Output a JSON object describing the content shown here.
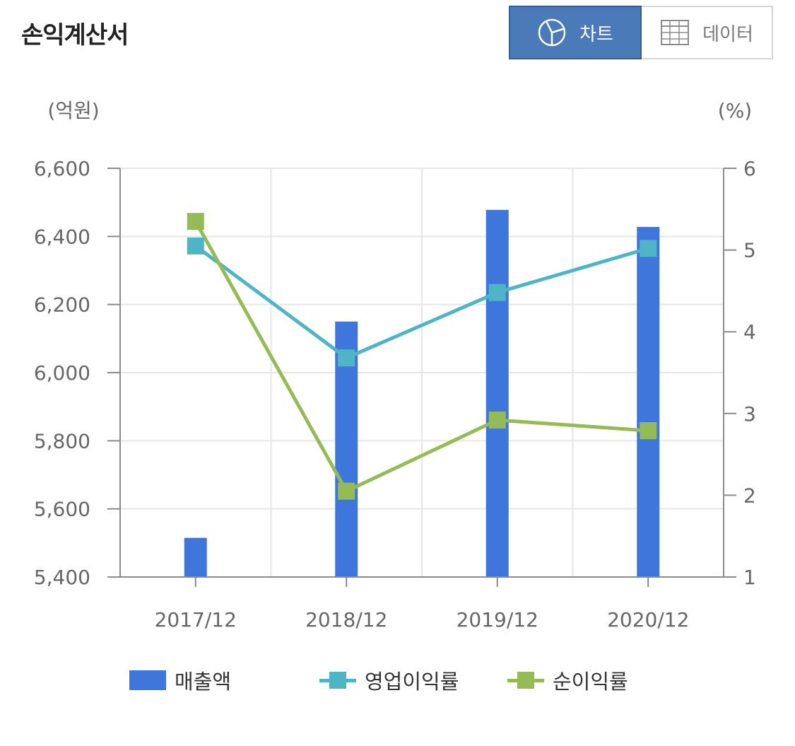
{
  "title": "손익계산서",
  "toggle": {
    "chart_label": "차트",
    "data_label": "데이터",
    "active": "chart"
  },
  "colors": {
    "bar": "#3f76db",
    "operating": "#4fb5c6",
    "net": "#94bb56",
    "active_toggle": "#4a7ab8"
  },
  "icons": {
    "chart_toggle": "pie-chart-icon",
    "data_toggle": "table-grid-icon"
  },
  "chart_data": {
    "type": "bar",
    "categories": [
      "2017/12",
      "2018/12",
      "2019/12",
      "2020/12"
    ],
    "left_axis": {
      "unit": "(억원)",
      "ylim": [
        5400,
        6600
      ],
      "ticks": [
        6600,
        6400,
        6200,
        6000,
        5800,
        5600,
        5400
      ],
      "tick_labels": [
        "6,600",
        "6,400",
        "6,200",
        "6,000",
        "5,800",
        "5,600",
        "5,400"
      ]
    },
    "right_axis": {
      "unit": "(%)",
      "ylim": [
        1,
        6
      ],
      "ticks": [
        6,
        5,
        4,
        3,
        2,
        1
      ]
    },
    "series": [
      {
        "name": "매출액",
        "type": "bar",
        "axis": "left",
        "values": [
          5515,
          6150,
          6478,
          6428
        ]
      },
      {
        "name": "영업이익률",
        "type": "line",
        "axis": "right",
        "values": [
          5.05,
          3.68,
          4.48,
          5.02
        ]
      },
      {
        "name": "순이익률",
        "type": "line",
        "axis": "right",
        "values": [
          5.35,
          2.05,
          2.92,
          2.79
        ]
      }
    ],
    "grid": true,
    "legend_position": "bottom"
  }
}
